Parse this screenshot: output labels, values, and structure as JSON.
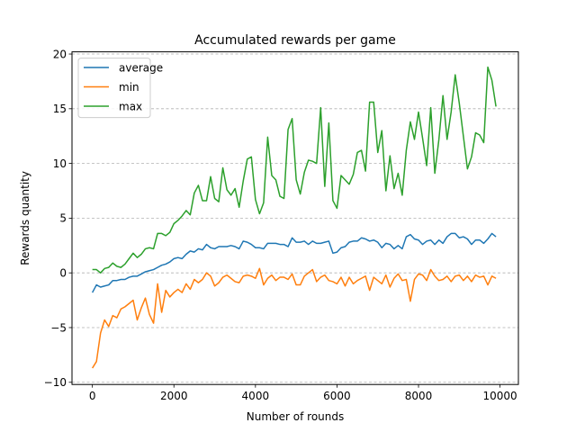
{
  "chart_data": {
    "type": "line",
    "title": "Accumulated rewards per game",
    "xlabel": "Number of rounds",
    "ylabel": "Rewards quantity",
    "xlim": [
      -500,
      10450
    ],
    "ylim": [
      -10.2,
      20.2
    ],
    "xticks": [
      0,
      2000,
      4000,
      6000,
      8000,
      10000
    ],
    "yticks": [
      -10,
      -5,
      0,
      5,
      10,
      15,
      20
    ],
    "grid": "y-dashed",
    "legend_position": "top-left",
    "colors": {
      "average": "#1f77b4",
      "min": "#ff7f0e",
      "max": "#2ca02c"
    },
    "x": [
      0,
      100,
      200,
      300,
      400,
      500,
      600,
      700,
      800,
      900,
      1000,
      1100,
      1200,
      1300,
      1400,
      1500,
      1600,
      1700,
      1800,
      1900,
      2000,
      2100,
      2200,
      2300,
      2400,
      2500,
      2600,
      2700,
      2800,
      2900,
      3000,
      3100,
      3200,
      3300,
      3400,
      3500,
      3600,
      3700,
      3800,
      3900,
      4000,
      4100,
      4200,
      4300,
      4400,
      4500,
      4600,
      4700,
      4800,
      4900,
      5000,
      5100,
      5200,
      5300,
      5400,
      5500,
      5600,
      5700,
      5800,
      5900,
      6000,
      6100,
      6200,
      6300,
      6400,
      6500,
      6600,
      6700,
      6800,
      6900,
      7000,
      7100,
      7200,
      7300,
      7400,
      7500,
      7600,
      7700,
      7800,
      7900,
      8000,
      8100,
      8200,
      8300,
      8400,
      8500,
      8600,
      8700,
      8800,
      8900,
      9000,
      9100,
      9200,
      9300,
      9400,
      9500,
      9600,
      9700,
      9800,
      9900
    ],
    "series": [
      {
        "name": "average",
        "values": [
          -1.8,
          -1.1,
          -1.3,
          -1.2,
          -1.1,
          -0.7,
          -0.7,
          -0.6,
          -0.6,
          -0.4,
          -0.3,
          -0.3,
          -0.1,
          0.1,
          0.2,
          0.3,
          0.5,
          0.7,
          0.8,
          1.0,
          1.3,
          1.4,
          1.3,
          1.7,
          2.0,
          1.9,
          2.2,
          2.1,
          2.6,
          2.3,
          2.2,
          2.4,
          2.4,
          2.4,
          2.5,
          2.4,
          2.2,
          2.9,
          2.8,
          2.6,
          2.3,
          2.3,
          2.2,
          2.7,
          2.7,
          2.7,
          2.6,
          2.6,
          2.4,
          3.2,
          2.8,
          2.8,
          2.9,
          2.6,
          2.9,
          2.7,
          2.7,
          2.8,
          2.9,
          1.8,
          1.9,
          2.3,
          2.4,
          2.8,
          2.9,
          2.9,
          3.2,
          3.1,
          2.9,
          3.0,
          2.8,
          2.3,
          2.7,
          2.6,
          2.2,
          2.5,
          2.2,
          3.3,
          3.5,
          3.1,
          3.0,
          2.6,
          2.9,
          3.0,
          2.6,
          3.0,
          2.7,
          3.3,
          3.6,
          3.6,
          3.2,
          3.3,
          3.1,
          2.6,
          3.0,
          3.0,
          2.7,
          3.1,
          3.6,
          3.3
        ]
      },
      {
        "name": "min",
        "values": [
          -8.7,
          -8.1,
          -5.5,
          -4.3,
          -4.9,
          -3.9,
          -4.1,
          -3.3,
          -3.1,
          -2.8,
          -2.5,
          -4.3,
          -3.2,
          -2.3,
          -3.8,
          -4.6,
          -1.0,
          -3.6,
          -1.6,
          -2.2,
          -1.8,
          -1.5,
          -1.8,
          -1.0,
          -1.5,
          -0.6,
          -0.9,
          -0.6,
          0.0,
          -0.3,
          -1.2,
          -0.9,
          -0.4,
          -0.2,
          -0.5,
          -0.8,
          -0.9,
          -0.3,
          -0.2,
          -0.3,
          -0.5,
          0.4,
          -1.1,
          -0.5,
          -0.2,
          -0.7,
          -0.4,
          -0.4,
          -0.6,
          -0.1,
          -1.1,
          -1.1,
          -0.3,
          0.0,
          0.3,
          -0.8,
          -0.4,
          -0.2,
          -0.7,
          -0.8,
          -1.0,
          -0.4,
          -1.2,
          -0.4,
          -1.0,
          -0.7,
          -0.5,
          -0.3,
          -1.6,
          -0.4,
          -0.7,
          -1.0,
          -0.2,
          -1.3,
          -0.5,
          -0.1,
          -0.7,
          -0.6,
          -2.6,
          -0.6,
          -0.1,
          -0.2,
          -0.7,
          0.3,
          -0.3,
          -0.7,
          -0.6,
          -0.3,
          -0.8,
          -0.3,
          -0.2,
          -0.7,
          -0.3,
          -0.8,
          -0.2,
          -0.4,
          -0.3,
          -1.1,
          -0.3,
          -0.5
        ]
      },
      {
        "name": "max",
        "values": [
          0.3,
          0.3,
          0.0,
          0.4,
          0.5,
          0.9,
          0.6,
          0.5,
          0.8,
          1.3,
          1.8,
          1.4,
          1.7,
          2.2,
          2.3,
          2.2,
          3.6,
          3.6,
          3.4,
          3.7,
          4.5,
          4.8,
          5.2,
          5.7,
          5.3,
          7.3,
          8.0,
          6.6,
          6.6,
          8.8,
          6.8,
          6.5,
          9.6,
          7.6,
          7.1,
          7.7,
          6.0,
          8.4,
          10.4,
          10.6,
          6.7,
          5.4,
          6.4,
          12.4,
          8.9,
          8.5,
          7.0,
          6.8,
          13.1,
          14.1,
          8.5,
          7.2,
          9.2,
          10.3,
          10.2,
          10.0,
          15.1,
          7.9,
          13.7,
          6.6,
          5.9,
          8.9,
          8.5,
          8.1,
          9.0,
          11.0,
          11.2,
          9.3,
          15.6,
          15.6,
          11.0,
          13.0,
          7.5,
          10.7,
          7.7,
          9.1,
          7.1,
          11.2,
          13.8,
          12.2,
          14.7,
          12.3,
          9.8,
          15.1,
          9.1,
          12.2,
          16.2,
          12.2,
          14.7,
          18.1,
          15.5,
          12.5,
          9.5,
          10.6,
          12.8,
          12.6,
          11.9,
          18.8,
          17.6,
          15.2
        ]
      }
    ]
  }
}
